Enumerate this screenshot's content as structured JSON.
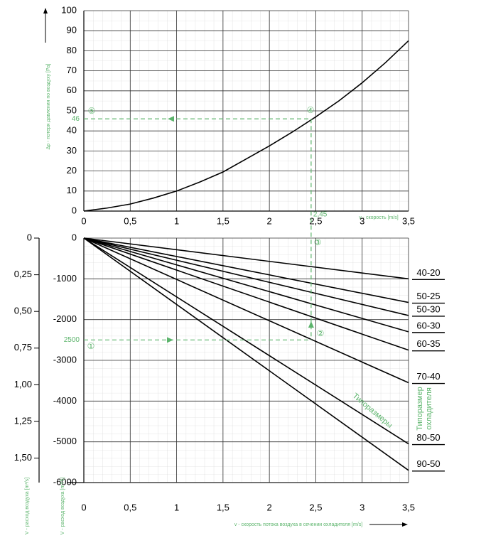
{
  "chart_data": [
    {
      "type": "line",
      "y_label": "Δp - потеря давления по воздуху [Pa]",
      "x_label": "v - скорость [m/s]",
      "xlim": [
        0,
        3.5
      ],
      "ylim": [
        0,
        100
      ],
      "xticks": [
        0,
        {
          "value": 0.5,
          "label": "0,5"
        },
        1,
        {
          "value": 1.5,
          "label": "1,5"
        },
        2,
        {
          "value": 2.5,
          "label": "2,5"
        },
        3,
        {
          "value": 3.5,
          "label": "3,5"
        }
      ],
      "yticks": [
        0,
        10,
        20,
        30,
        40,
        50,
        60,
        70,
        80,
        90,
        100
      ],
      "grid": true,
      "x": [
        0,
        0.25,
        0.5,
        0.75,
        1,
        1.25,
        1.5,
        1.75,
        2,
        2.25,
        2.5,
        2.75,
        3,
        3.25,
        3.5
      ],
      "series": [
        {
          "color": "#000000",
          "values": [
            0,
            1.5,
            3.5,
            6.5,
            10,
            14.5,
            19.5,
            26,
            32.5,
            39.5,
            47,
            55,
            64,
            74,
            85
          ]
        }
      ],
      "guide": {
        "x": {
          "value": 2.45,
          "label": "2,45"
        },
        "y": 46,
        "color": "#5cb46c"
      },
      "markers": [
        "⑤",
        "④"
      ]
    },
    {
      "type": "line",
      "y_label": "V - расход воздуха [m³/h]",
      "y2_label": "V - расход воздуха [m³/s]",
      "x_label": "v - скорость потока воздуха в сечении охладителя [m/s]",
      "xlim": [
        0,
        3.5
      ],
      "ylim": [
        -6000,
        0
      ],
      "xticks": [
        0,
        {
          "value": 0.5,
          "label": "0,5"
        },
        1,
        {
          "value": 1.5,
          "label": "1,5"
        },
        2,
        {
          "value": 2.5,
          "label": "2,5"
        },
        3,
        {
          "value": 3.5,
          "label": "3,5"
        }
      ],
      "yticks": [
        0,
        -1000,
        -2000,
        -3000,
        -4000,
        -5000,
        -6000
      ],
      "y2lim": [
        1.6667,
        0
      ],
      "y2ticks": [
        0,
        {
          "value": 0.25,
          "label": "0,25"
        },
        {
          "value": 0.5,
          "label": "0,50"
        },
        {
          "value": 0.75,
          "label": "0,75"
        },
        {
          "value": 1,
          "label": "1,00"
        },
        {
          "value": 1.25,
          "label": "1,25"
        },
        {
          "value": 1.5,
          "label": "1,50"
        }
      ],
      "grid": true,
      "x": [
        0,
        3.5
      ],
      "series": [
        {
          "name": "40-20",
          "color": "#000000",
          "values": [
            0,
            -1000
          ]
        },
        {
          "name": "50-25",
          "color": "#000000",
          "values": [
            0,
            -1580
          ]
        },
        {
          "name": "50-30",
          "color": "#000000",
          "values": [
            0,
            -1900
          ]
        },
        {
          "name": "60-30",
          "color": "#000000",
          "values": [
            0,
            -2300
          ]
        },
        {
          "name": "60-35",
          "color": "#000000",
          "values": [
            0,
            -2750
          ]
        },
        {
          "name": "70-40",
          "color": "#000000",
          "values": [
            0,
            -3550
          ]
        },
        {
          "name": "80-50",
          "color": "#000000",
          "values": [
            0,
            -5050
          ]
        },
        {
          "name": "90-50",
          "color": "#000000",
          "values": [
            0,
            -5700
          ]
        }
      ],
      "guide": {
        "y": {
          "value": -2500,
          "label": "2500"
        },
        "color": "#5cb46c"
      },
      "markers": [
        "①",
        "②",
        "③"
      ],
      "series_caption": "Типоразмеры",
      "legend_title": [
        "Типоразмер",
        "охладителя"
      ]
    }
  ]
}
